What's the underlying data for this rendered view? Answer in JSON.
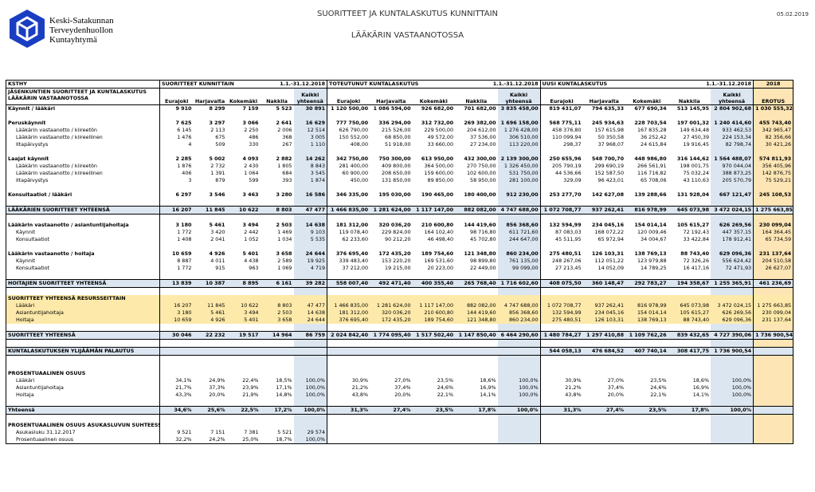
{
  "header": {
    "logo_lines": [
      "Keski-Satakunnan",
      "Terveydenhuollon",
      "Kuntayhtymä"
    ],
    "title": "SUORITTEET JA KUNTALASKUTUS KUNNITTAIN",
    "subtitle": "LÄÄKÄRIN VASTAANOTOSSA",
    "date": "05.02.2019"
  },
  "table": {
    "ksthy": "KSTHY",
    "section_title": "JÄSENKUNTIEN SUORITTEET JA KUNTALASKUTUS LÄÄKÄRIN VASTAANOTOSSA",
    "year": "2018",
    "erotus": "EROTUS",
    "groups": [
      {
        "name": "SUORITTEET KUNNITTAIN",
        "period": "1.1.-31.12.2018",
        "columns": [
          "Eurajoki",
          "Harjavalta",
          "Kokemäki",
          "Nakkila",
          "Kaikki yhteensä"
        ]
      },
      {
        "name": "TOTEUTUNUT KUNTALASKUTUS",
        "period": "1.1.-31.12.2018",
        "columns": [
          "Eurajoki",
          "Harjavalta",
          "Kokemäki",
          "Nakkila",
          "Kaikki yhteensä"
        ]
      },
      {
        "name": "UUSI KUNTALASKUTUS",
        "period": "1.1.-31.12.2018",
        "columns": [
          "Eurajoki",
          "Harjavalta",
          "Kokemäki",
          "Nakkila",
          "Kaikki yhteensä"
        ]
      }
    ],
    "rows": [
      [
        "Käynnit / lääkäri",
        "9 910",
        "8 299",
        "7 159",
        "5 523",
        "30 891",
        "1 120 500,00",
        "1 086 594,00",
        "926 682,00",
        "701 682,00",
        "3 835 458,00",
        "819 431,07",
        "794 635,33",
        "677 690,34",
        "513 145,95",
        "2 804 902,68",
        "1 030 555,32"
      ],
      [
        "Peruskäynnit",
        "7 625",
        "3 297",
        "3 066",
        "2 641",
        "16 629",
        "777 750,00",
        "336 294,00",
        "312 732,00",
        "269 382,00",
        "1 696 158,00",
        "568 775,11",
        "245 934,63",
        "228 703,54",
        "197 001,32",
        "1 240 414,60",
        "455 743,40"
      ],
      [
        "Lääkärin vastaanotto / kiireetön",
        "6 145",
        "2 113",
        "2 250",
        "2 006",
        "12 514",
        "626 790,00",
        "215 526,00",
        "229 500,00",
        "204 612,00",
        "1 276 428,00",
        "458 376,80",
        "157 615,98",
        "167 835,28",
        "149 634,48",
        "933 462,53",
        "342 965,47"
      ],
      [
        "Lääkärin vastaanotto / kiireellinen",
        "1 476",
        "675",
        "486",
        "368",
        "3 005",
        "150 552,00",
        "68 850,00",
        "49 572,00",
        "37 536,00",
        "306 510,00",
        "110 099,94",
        "50 350,58",
        "36 252,42",
        "27 450,39",
        "224 153,34",
        "82 356,66"
      ],
      [
        "Iltapäivystys",
        "4",
        "509",
        "330",
        "267",
        "1 110",
        "408,00",
        "51 918,00",
        "33 660,00",
        "27 234,00",
        "113 220,00",
        "298,37",
        "37 968,07",
        "24 615,84",
        "19 916,45",
        "82 798,74",
        "30 421,26"
      ],
      [
        "Laajat käynnit",
        "2 285",
        "5 002",
        "4 093",
        "2 882",
        "14 262",
        "342 750,00",
        "750 300,00",
        "613 950,00",
        "432 300,00",
        "2 139 300,00",
        "250 655,96",
        "548 700,70",
        "448 986,80",
        "316 144,62",
        "1 564 488,07",
        "574 811,93"
      ],
      [
        "Lääkärin vastaanotto / kiireetön",
        "1 876",
        "2 732",
        "2 430",
        "1 805",
        "8 843",
        "281 400,00",
        "409 800,00",
        "364 500,00",
        "270 750,00",
        "1 326 450,00",
        "205 790,19",
        "299 690,19",
        "266 561,91",
        "198 001,75",
        "970 044,04",
        "356 405,96"
      ],
      [
        "Lääkärin vastaanotto / kiireellinen",
        "406",
        "1 391",
        "1 064",
        "684",
        "3 545",
        "60 900,00",
        "208 650,00",
        "159 600,00",
        "102 600,00",
        "531 750,00",
        "44 536,66",
        "152 587,50",
        "116 716,82",
        "75 032,24",
        "388 873,25",
        "142 876,75"
      ],
      [
        "Iltapäivystys",
        "3",
        "879",
        "599",
        "393",
        "1 874",
        "450,00",
        "131 850,00",
        "89 850,00",
        "58 950,00",
        "281 100,00",
        "329,09",
        "96 423,01",
        "65 708,06",
        "43 110,63",
        "205 570,79",
        "75 529,21"
      ],
      [
        "Konsultaatiot / lääkäri",
        "6 297",
        "3 546",
        "3 463",
        "3 280",
        "16 586",
        "346 335,00",
        "195 030,00",
        "190 465,00",
        "180 400,00",
        "912 230,00",
        "253 277,70",
        "142 627,08",
        "139 288,66",
        "131 928,04",
        "667 121,47",
        "245 108,53"
      ],
      [
        "LÄÄKÄRIEN SUORITTEET YHTEENSÄ",
        "16 207",
        "11 845",
        "10 622",
        "8 803",
        "47 477",
        "1 466 835,00",
        "1 281 624,00",
        "1 117 147,00",
        "882 082,00",
        "4 747 688,00",
        "1 072 708,77",
        "937 262,41",
        "816 978,99",
        "645 073,98",
        "3 472 024,15",
        "1 275 663,85"
      ],
      [
        "Lääkärin vastaanotto / asiantuntijahoitaja",
        "3 180",
        "5 461",
        "3 494",
        "2 503",
        "14 638",
        "181 312,00",
        "320 036,20",
        "210 600,80",
        "144 419,60",
        "856 368,60",
        "132 594,99",
        "234 045,16",
        "154 014,14",
        "105 615,27",
        "626 269,56",
        "230 099,04"
      ],
      [
        "Käynnit",
        "1 772",
        "3 420",
        "2 442",
        "1 469",
        "9 103",
        "119 078,40",
        "229 824,00",
        "164 102,40",
        "98 716,80",
        "611 721,60",
        "87 083,03",
        "168 072,22",
        "120 009,46",
        "72 192,43",
        "447 357,15",
        "164 364,45"
      ],
      [
        "Konsultaatiot",
        "1 408",
        "2 041",
        "1 052",
        "1 034",
        "5 535",
        "62 233,60",
        "90 212,20",
        "46 498,40",
        "45 702,80",
        "244 647,00",
        "45 511,95",
        "65 972,94",
        "34 004,67",
        "33 422,84",
        "178 912,41",
        "65 734,59"
      ],
      [
        "Lääkärin vastaanotto / hoitaja",
        "10 659",
        "4 926",
        "5 401",
        "3 658",
        "24 644",
        "376 695,40",
        "172 435,20",
        "189 754,60",
        "121 348,80",
        "860 234,00",
        "275 480,51",
        "126 103,31",
        "138 769,13",
        "88 743,40",
        "629 096,36",
        "231 137,64"
      ],
      [
        "Käynnit",
        "8 887",
        "4 011",
        "4 438",
        "2 589",
        "19 925",
        "339 483,40",
        "153 220,20",
        "169 531,60",
        "98 899,80",
        "761 135,00",
        "248 267,06",
        "112 051,22",
        "123 979,88",
        "72 326,26",
        "556 624,42",
        "204 510,58"
      ],
      [
        "Konsultaatiot",
        "1 772",
        "915",
        "963",
        "1 069",
        "4 719",
        "37 212,00",
        "19 215,00",
        "20 223,00",
        "22 449,00",
        "99 099,00",
        "27 213,45",
        "14 052,09",
        "14 789,25",
        "16 417,16",
        "72 471,93",
        "26 627,07"
      ],
      [
        "HOITAJIEN SUORITTEET YHTEENSÄ",
        "13 839",
        "10 387",
        "8 895",
        "6 161",
        "39 282",
        "558 007,40",
        "492 471,40",
        "400 355,40",
        "265 768,40",
        "1 716 602,60",
        "408 075,50",
        "360 148,47",
        "292 783,27",
        "194 358,67",
        "1 255 365,91",
        "461 236,69"
      ],
      [
        "SUORITTEET YHTEENSÄ RESURSSEITTAIN"
      ],
      [
        "Lääkäri",
        "16 207",
        "11 845",
        "10 622",
        "8 803",
        "47 477",
        "1 466 835,00",
        "1 281 624,00",
        "1 117 147,00",
        "882 082,00",
        "4 747 688,00",
        "1 072 708,77",
        "937 262,41",
        "816 978,99",
        "645 073,98",
        "3 472 024,15",
        "1 275 663,85"
      ],
      [
        "Asiantuntijahoitaja",
        "3 180",
        "5 461",
        "3 494",
        "2 503",
        "14 638",
        "181 312,00",
        "320 036,20",
        "210 600,80",
        "144 419,60",
        "856 368,60",
        "132 594,99",
        "234 045,16",
        "154 014,14",
        "105 615,27",
        "626 269,56",
        "230 099,04"
      ],
      [
        "Hoitaja",
        "10 659",
        "4 926",
        "5 401",
        "3 658",
        "24 644",
        "376 695,40",
        "172 435,20",
        "189 754,60",
        "121 348,80",
        "860 234,00",
        "275 480,51",
        "126 103,31",
        "138 769,13",
        "88 743,40",
        "629 096,36",
        "231 137,64"
      ],
      [
        "SUORITTEET YHTEENSÄ",
        "30 046",
        "22 232",
        "19 517",
        "14 964",
        "86 759",
        "2 024 842,40",
        "1 774 095,40",
        "1 517 502,40",
        "1 147 850,40",
        "6 464 290,60",
        "1 480 784,27",
        "1 297 410,88",
        "1 109 762,26",
        "839 432,65",
        "4 727 390,06",
        "1 736 900,54"
      ],
      [
        "KUNTALASKUTUKSEN YLIJÄÄMÄN PALAUTUS",
        null,
        null,
        null,
        null,
        null,
        null,
        null,
        null,
        null,
        null,
        "544 058,13",
        "476 684,52",
        "407 740,14",
        "308 417,75",
        "1 736 900,54"
      ],
      [
        "PROSENTUAALINEN OSUUS"
      ],
      [
        "Lääkäri",
        "34,1%",
        "24,9%",
        "22,4%",
        "18,5%",
        "100,0%",
        "30,9%",
        "27,0%",
        "23,5%",
        "18,6%",
        "100,0%",
        "30,9%",
        "27,0%",
        "23,5%",
        "18,6%",
        "100,0%"
      ],
      [
        "Asiantuntijahoitaja",
        "21,7%",
        "37,3%",
        "23,9%",
        "17,1%",
        "100,0%",
        "21,2%",
        "37,4%",
        "24,6%",
        "16,9%",
        "100,0%",
        "21,2%",
        "37,4%",
        "24,6%",
        "16,9%",
        "100,0%"
      ],
      [
        "Hoitaja",
        "43,3%",
        "20,0%",
        "21,9%",
        "14,8%",
        "100,0%",
        "43,8%",
        "20,0%",
        "22,1%",
        "14,1%",
        "100,0%",
        "43,8%",
        "20,0%",
        "22,1%",
        "14,1%",
        "100,0%"
      ],
      [
        "Yhteensä",
        "34,6%",
        "25,6%",
        "22,5%",
        "17,2%",
        "100,0%",
        "31,3%",
        "27,4%",
        "23,5%",
        "17,8%",
        "100,0%",
        "31,3%",
        "27,4%",
        "23,5%",
        "17,8%",
        "100,0%"
      ],
      [
        "PROSENTUAALINEN OSUUS ASUKASLUVUN SUHTEESSA"
      ],
      [
        "Asukasluku 31.12.2017",
        "9 521",
        "7 151",
        "7 381",
        "5 521",
        "29 574"
      ],
      [
        "Prosentuaalinen osuus",
        "32,2%",
        "24,2%",
        "25,0%",
        "18,7%",
        "100,0%"
      ]
    ]
  }
}
